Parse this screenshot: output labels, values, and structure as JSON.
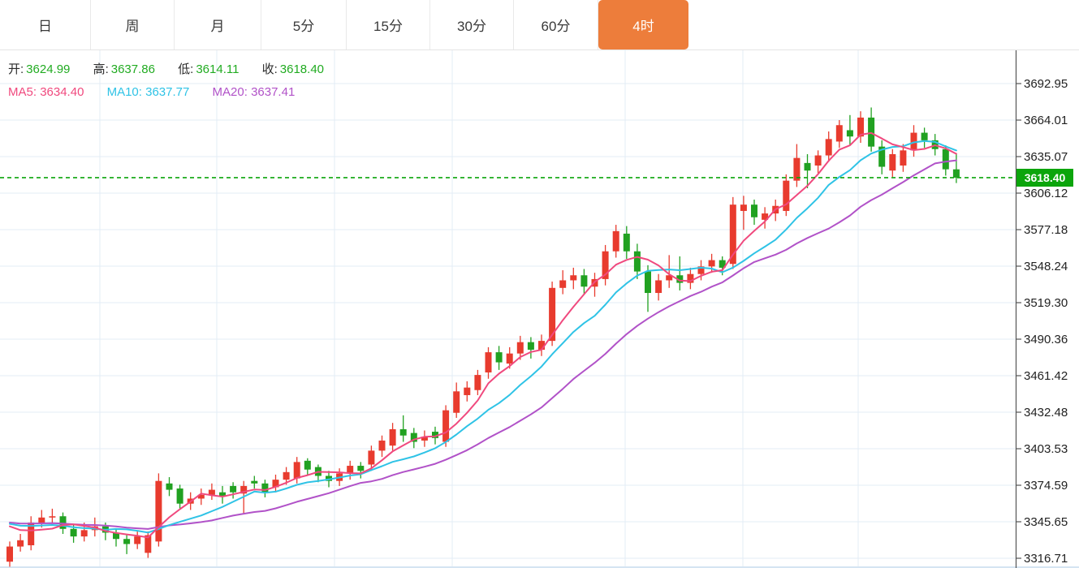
{
  "tabs": {
    "active_bg": "#ed7d3b",
    "items": [
      {
        "label": "日",
        "active": false
      },
      {
        "label": "周",
        "active": false
      },
      {
        "label": "月",
        "active": false
      },
      {
        "label": "5分",
        "active": false
      },
      {
        "label": "15分",
        "active": false
      },
      {
        "label": "30分",
        "active": false
      },
      {
        "label": "60分",
        "active": false
      },
      {
        "label": "4时",
        "active": true
      }
    ]
  },
  "legend": {
    "ohlc": [
      {
        "label": "开:",
        "value": "3624.99"
      },
      {
        "label": "高:",
        "value": "3637.86"
      },
      {
        "label": "低:",
        "value": "3614.11"
      },
      {
        "label": "收:",
        "value": "3618.40"
      }
    ],
    "ma": [
      {
        "label": "MA5:",
        "value": "3634.40",
        "color_key": "ma5"
      },
      {
        "label": "MA10:",
        "value": "3637.77",
        "color_key": "ma10"
      },
      {
        "label": "MA20:",
        "value": "3637.41",
        "color_key": "ma20"
      }
    ]
  },
  "chart_data": {
    "type": "candlestick",
    "timeframe": "4时",
    "title": "",
    "candle_format": "[open, close, low, high]",
    "y_axis": {
      "max": 3692.95,
      "min": 3316.71,
      "tick_labels": [
        "3692.95",
        "3664.01",
        "3635.07",
        "3606.12",
        "3577.18",
        "3548.24",
        "3519.30",
        "3490.36",
        "3461.42",
        "3432.48",
        "3403.53",
        "3374.59",
        "3345.65",
        "3316.71"
      ]
    },
    "last_price": {
      "value": 3618.4,
      "label": "3618.40"
    },
    "colors": {
      "up": "#e83b2e",
      "down": "#21a121",
      "ma5": "#f0497e",
      "ma10": "#2fc3e6",
      "ma20": "#b152c8",
      "grid": "#e3ecf5",
      "axis": "#555555",
      "tick_text": "#222222",
      "legend_value": "#21ab21",
      "last_price_line": "#0ca50c",
      "last_price_badge": "#0ca50c",
      "bottom_edge": "#d5e4f2"
    },
    "moving_averages": {
      "windows": [
        20,
        10,
        5
      ],
      "seed": 3346
    },
    "candles": [
      [
        3314,
        3326,
        3310,
        3330
      ],
      [
        3326,
        3331,
        3322,
        3336
      ],
      [
        3327,
        3345,
        3323,
        3350
      ],
      [
        3345,
        3349,
        3341,
        3355
      ],
      [
        3349,
        3350,
        3344,
        3356
      ],
      [
        3350,
        3340,
        3336,
        3353
      ],
      [
        3340,
        3334,
        3329,
        3344
      ],
      [
        3334,
        3339,
        3330,
        3345
      ],
      [
        3339,
        3342,
        3334,
        3349
      ],
      [
        3342,
        3337,
        3331,
        3345
      ],
      [
        3337,
        3332,
        3326,
        3340
      ],
      [
        3332,
        3328,
        3320,
        3336
      ],
      [
        3328,
        3334,
        3324,
        3338
      ],
      [
        3321,
        3335,
        3317,
        3338
      ],
      [
        3330,
        3378,
        3326,
        3384
      ],
      [
        3376,
        3371,
        3366,
        3381
      ],
      [
        3372,
        3360,
        3356,
        3375
      ],
      [
        3360,
        3364,
        3355,
        3369
      ],
      [
        3364,
        3367,
        3359,
        3372
      ],
      [
        3367,
        3371,
        3363,
        3376
      ],
      [
        3369,
        3366,
        3360,
        3374
      ],
      [
        3374,
        3369,
        3364,
        3377
      ],
      [
        3368,
        3374,
        3352,
        3378
      ],
      [
        3378,
        3376,
        3372,
        3382
      ],
      [
        3376,
        3369,
        3365,
        3379
      ],
      [
        3373,
        3379,
        3369,
        3383
      ],
      [
        3379,
        3385,
        3375,
        3389
      ],
      [
        3380,
        3393,
        3376,
        3397
      ],
      [
        3394,
        3387,
        3382,
        3396
      ],
      [
        3389,
        3382,
        3377,
        3391
      ],
      [
        3382,
        3378,
        3373,
        3386
      ],
      [
        3378,
        3384,
        3374,
        3388
      ],
      [
        3384,
        3390,
        3379,
        3394
      ],
      [
        3390,
        3386,
        3380,
        3393
      ],
      [
        3391,
        3402,
        3386,
        3406
      ],
      [
        3402,
        3410,
        3397,
        3414
      ],
      [
        3406,
        3419,
        3402,
        3424
      ],
      [
        3419,
        3414,
        3409,
        3430
      ],
      [
        3416,
        3409,
        3404,
        3420
      ],
      [
        3410,
        3413,
        3405,
        3418
      ],
      [
        3417,
        3412,
        3407,
        3421
      ],
      [
        3409,
        3434,
        3405,
        3438
      ],
      [
        3432,
        3449,
        3428,
        3456
      ],
      [
        3446,
        3452,
        3441,
        3457
      ],
      [
        3450,
        3462,
        3446,
        3466
      ],
      [
        3464,
        3480,
        3459,
        3484
      ],
      [
        3480,
        3472,
        3466,
        3485
      ],
      [
        3471,
        3479,
        3467,
        3484
      ],
      [
        3479,
        3488,
        3474,
        3493
      ],
      [
        3488,
        3482,
        3475,
        3492
      ],
      [
        3482,
        3489,
        3477,
        3494
      ],
      [
        3489,
        3531,
        3485,
        3536
      ],
      [
        3531,
        3537,
        3526,
        3545
      ],
      [
        3537,
        3541,
        3530,
        3547
      ],
      [
        3541,
        3532,
        3526,
        3546
      ],
      [
        3532,
        3538,
        3524,
        3543
      ],
      [
        3538,
        3560,
        3533,
        3565
      ],
      [
        3560,
        3576,
        3555,
        3581
      ],
      [
        3574,
        3560,
        3554,
        3580
      ],
      [
        3560,
        3544,
        3538,
        3566
      ],
      [
        3544,
        3527,
        3512,
        3549
      ],
      [
        3527,
        3537,
        3521,
        3542
      ],
      [
        3537,
        3541,
        3531,
        3557
      ],
      [
        3541,
        3535,
        3529,
        3556
      ],
      [
        3535,
        3542,
        3530,
        3547
      ],
      [
        3542,
        3548,
        3537,
        3553
      ],
      [
        3548,
        3553,
        3543,
        3558
      ],
      [
        3553,
        3547,
        3541,
        3556
      ],
      [
        3550,
        3597,
        3546,
        3603
      ],
      [
        3592,
        3597,
        3577,
        3604
      ],
      [
        3597,
        3587,
        3581,
        3601
      ],
      [
        3585,
        3590,
        3578,
        3595
      ],
      [
        3590,
        3596,
        3584,
        3601
      ],
      [
        3592,
        3616,
        3588,
        3621
      ],
      [
        3616,
        3634,
        3611,
        3645
      ],
      [
        3630,
        3624,
        3610,
        3637
      ],
      [
        3628,
        3636,
        3622,
        3640
      ],
      [
        3636,
        3649,
        3631,
        3655
      ],
      [
        3647,
        3660,
        3642,
        3664
      ],
      [
        3656,
        3651,
        3644,
        3668
      ],
      [
        3651,
        3666,
        3646,
        3671
      ],
      [
        3666,
        3643,
        3639,
        3674
      ],
      [
        3643,
        3627,
        3621,
        3648
      ],
      [
        3624,
        3637,
        3619,
        3641
      ],
      [
        3628,
        3640,
        3623,
        3645
      ],
      [
        3640,
        3654,
        3635,
        3660
      ],
      [
        3654,
        3648,
        3642,
        3658
      ],
      [
        3648,
        3641,
        3636,
        3653
      ],
      [
        3641,
        3625,
        3620,
        3644
      ],
      [
        3624.99,
        3618.4,
        3614.11,
        3637.86
      ]
    ]
  }
}
